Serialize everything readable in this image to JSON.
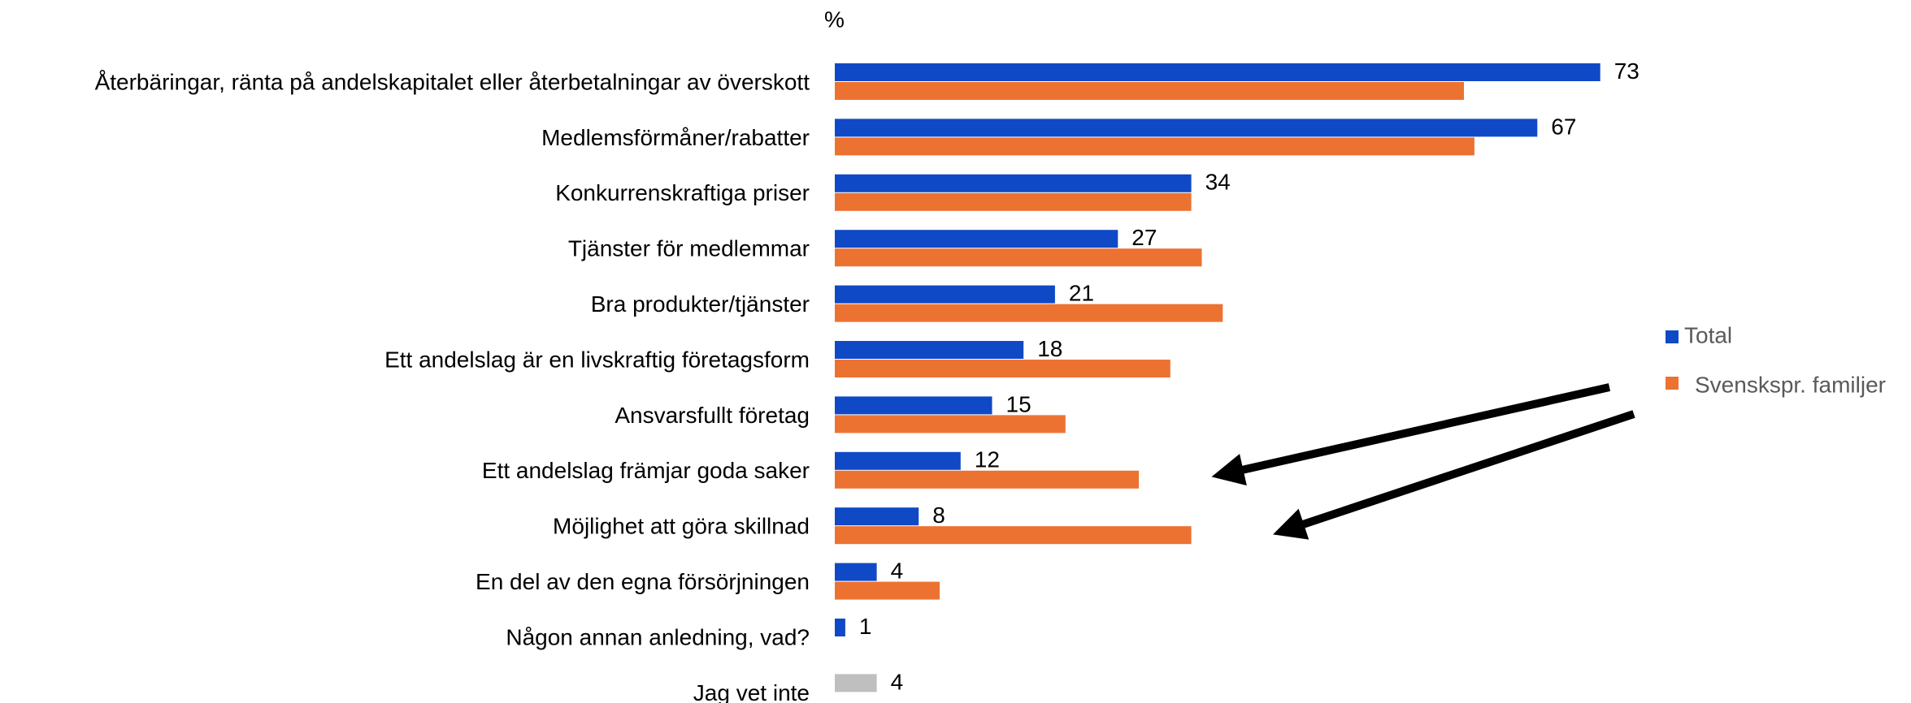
{
  "chart_data": {
    "type": "hbar",
    "unit_label": "%",
    "categories": [
      "Återbäringar, ränta på andelskapitalet eller återbetalningar av överskott",
      "Medlemsförmåner/rabatter",
      "Konkurrenskraftiga priser",
      "Tjänster för medlemmar",
      "Bra produkter/tjänster",
      "Ett andelslag är en livskraftig företagsform",
      "Ansvarsfullt företag",
      "Ett andelslag främjar goda saker",
      "Möjlighet att göra skillnad",
      "En del av den egna försörjningen",
      "Någon annan anledning, vad?",
      "Jag vet inte"
    ],
    "series": [
      {
        "name": "Total",
        "color": "#0f49c6",
        "point_colors": [
          null,
          null,
          null,
          null,
          null,
          null,
          null,
          null,
          null,
          null,
          null,
          "#bfbfbf"
        ],
        "show_values": true,
        "values": [
          73,
          67,
          34,
          27,
          21,
          18,
          15,
          12,
          8,
          4,
          1,
          4
        ]
      },
      {
        "name": "Svensksp​r. familjer",
        "color": "#ec7232",
        "show_values": false,
        "values": [
          60,
          61,
          34,
          35,
          37,
          32,
          22,
          29,
          34,
          10,
          null,
          null
        ]
      }
    ],
    "xlim": [
      0,
      100
    ],
    "legend": "right"
  }
}
